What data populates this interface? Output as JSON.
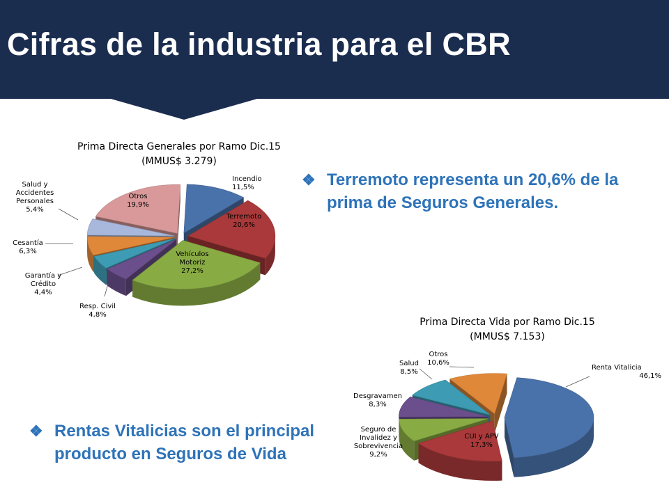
{
  "slide": {
    "title": "Cifras de la industria para el CBR",
    "bullets": [
      "Terremoto representa un 20,6% de la prima de Seguros Generales.",
      "Rentas Vitalicias son el principal producto en Seguros de Vida"
    ],
    "bullet_glyph": "❖",
    "colors": {
      "banner": "#1b2d4f",
      "title": "#ffffff",
      "bullet_text": "#2e73b9"
    }
  },
  "chart_data": [
    {
      "type": "pie",
      "title": "Prima Directa Generales por Ramo Dic.15",
      "subtitle": "(MMUS$ 3.279)",
      "slices": [
        {
          "label": "Incendio",
          "value": 11.5,
          "display": "11,5%",
          "color": "#4a72aa"
        },
        {
          "label": "Terremoto",
          "value": 20.6,
          "display": "20,6%",
          "color": "#a9393a"
        },
        {
          "label": "Vehículos Motoriz",
          "value": 27.2,
          "display": "27,2%",
          "color": "#89ab44"
        },
        {
          "label": "Resp. Civil",
          "value": 4.8,
          "display": "4,8%",
          "color": "#6b4f8c"
        },
        {
          "label": "Garantía y Crédito",
          "value": 4.4,
          "display": "4,4%",
          "color": "#3d9bb3"
        },
        {
          "label": "Cesantía",
          "value": 6.3,
          "display": "6,3%",
          "color": "#e0883a"
        },
        {
          "label": "Salud y Accidentes Personales",
          "value": 5.4,
          "display": "5,4%",
          "color": "#a7b8dc"
        },
        {
          "label": "Otros",
          "value": 19.9,
          "display": "19,9%",
          "color": "#d9999a"
        }
      ]
    },
    {
      "type": "pie",
      "title": "Prima Directa Vida por Ramo Dic.15",
      "subtitle": "(MMUS$ 7.153)",
      "slices": [
        {
          "label": "Renta Vitalicia",
          "value": 46.1,
          "display": "46,1%",
          "color": "#4a72aa"
        },
        {
          "label": "CUI y APV",
          "value": 17.3,
          "display": "17,3%",
          "color": "#a9393a"
        },
        {
          "label": "Seguro de Invalidez y Sobrevivencia",
          "value": 9.2,
          "display": "9,2%",
          "color": "#89ab44"
        },
        {
          "label": "Desgravamen",
          "value": 8.3,
          "display": "8,3%",
          "color": "#6b4f8c"
        },
        {
          "label": "Salud",
          "value": 8.5,
          "display": "8,5%",
          "color": "#3d9bb3"
        },
        {
          "label": "Otros",
          "value": 10.6,
          "display": "10,6%",
          "color": "#e0883a"
        }
      ]
    }
  ]
}
